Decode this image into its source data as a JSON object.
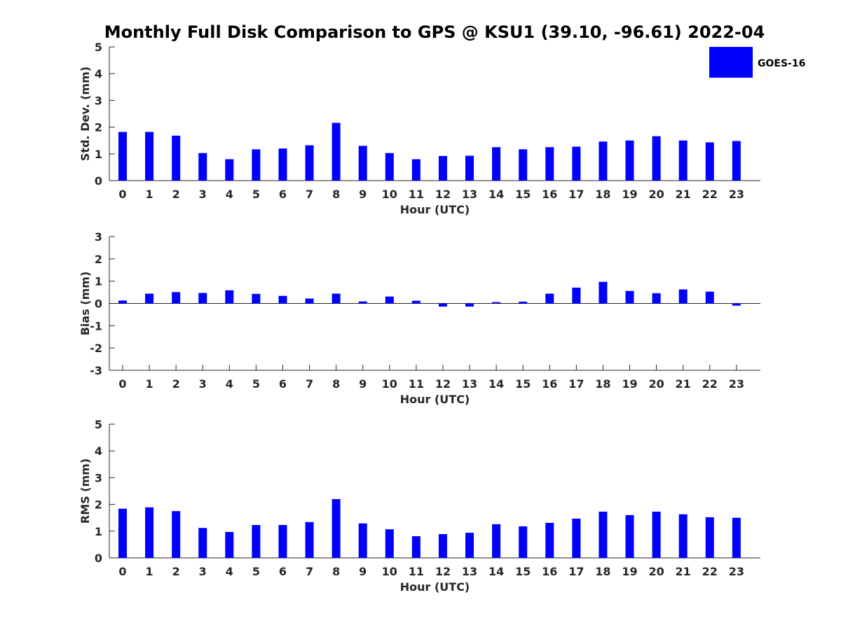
{
  "title": "Monthly Full Disk Comparison to GPS @ KSU1 (39.10, -96.61) 2022-04",
  "legend": {
    "label": "GOES-16",
    "color": "#0000ff",
    "position": "top-right"
  },
  "chart_data": [
    {
      "type": "bar",
      "categories": [
        "0",
        "1",
        "2",
        "3",
        "4",
        "5",
        "6",
        "7",
        "8",
        "9",
        "10",
        "11",
        "12",
        "13",
        "14",
        "15",
        "16",
        "17",
        "18",
        "19",
        "20",
        "21",
        "22",
        "23"
      ],
      "series": [
        {
          "name": "GOES-16",
          "color": "#0000ff",
          "values": [
            1.82,
            1.82,
            1.68,
            1.03,
            0.8,
            1.17,
            1.2,
            1.32,
            2.16,
            1.3,
            1.03,
            0.8,
            0.92,
            0.93,
            1.25,
            1.17,
            1.25,
            1.27,
            1.46,
            1.5,
            1.66,
            1.5,
            1.43,
            1.48
          ]
        }
      ],
      "xlabel": "Hour (UTC)",
      "ylabel": "Std. Dev. (mm)",
      "ylim": [
        0,
        5
      ],
      "yticks": [
        "0",
        "1",
        "2",
        "3",
        "4",
        "5"
      ],
      "grid": false
    },
    {
      "type": "bar",
      "categories": [
        "0",
        "1",
        "2",
        "3",
        "4",
        "5",
        "6",
        "7",
        "8",
        "9",
        "10",
        "11",
        "12",
        "13",
        "14",
        "15",
        "16",
        "17",
        "18",
        "19",
        "20",
        "21",
        "22",
        "23"
      ],
      "series": [
        {
          "name": "GOES-16",
          "color": "#0000ff",
          "values": [
            0.13,
            0.44,
            0.51,
            0.47,
            0.59,
            0.43,
            0.34,
            0.22,
            0.44,
            0.09,
            0.31,
            0.12,
            -0.14,
            -0.14,
            0.06,
            0.08,
            0.44,
            0.71,
            0.97,
            0.56,
            0.46,
            0.63,
            0.53,
            -0.1
          ]
        }
      ],
      "xlabel": "Hour (UTC)",
      "ylabel": "Bias (mm)",
      "ylim": [
        -3,
        3
      ],
      "yticks": [
        "-3",
        "-2",
        "-1",
        "0",
        "1",
        "2",
        "3"
      ],
      "grid": false
    },
    {
      "type": "bar",
      "categories": [
        "0",
        "1",
        "2",
        "3",
        "4",
        "5",
        "6",
        "7",
        "8",
        "9",
        "10",
        "11",
        "12",
        "13",
        "14",
        "15",
        "16",
        "17",
        "18",
        "19",
        "20",
        "21",
        "22",
        "23"
      ],
      "series": [
        {
          "name": "GOES-16",
          "color": "#0000ff",
          "values": [
            1.84,
            1.89,
            1.75,
            1.12,
            0.97,
            1.23,
            1.23,
            1.34,
            2.2,
            1.29,
            1.07,
            0.81,
            0.89,
            0.94,
            1.26,
            1.18,
            1.31,
            1.47,
            1.73,
            1.6,
            1.73,
            1.63,
            1.52,
            1.5
          ]
        }
      ],
      "xlabel": "Hour (UTC)",
      "ylabel": "RMS (mm)",
      "ylim": [
        0,
        5
      ],
      "yticks": [
        "0",
        "1",
        "2",
        "3",
        "4",
        "5"
      ],
      "grid": false
    }
  ]
}
